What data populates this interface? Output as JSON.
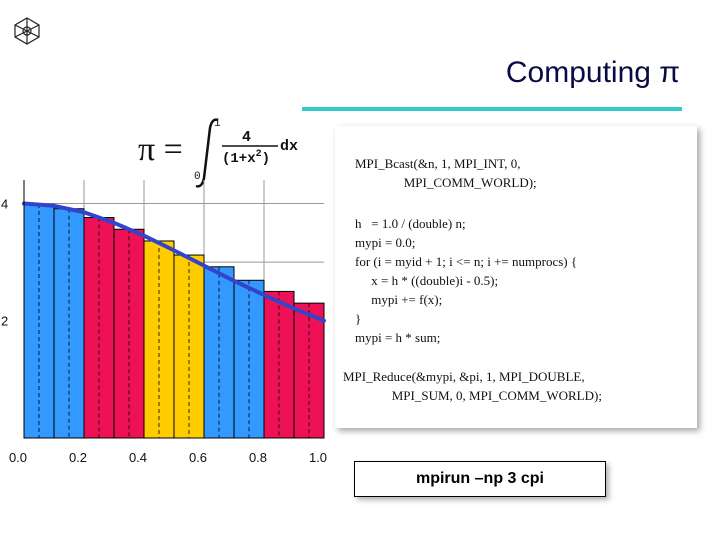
{
  "slide": {
    "title": "Computing π",
    "logo_icon": "net-cube-logo",
    "accent_color": "#33cccc"
  },
  "formula": {
    "lhs": "π =",
    "upper_limit": "1",
    "lower_limit": "0",
    "numerator": "4",
    "denominator": "(1+x",
    "exponent": "2",
    "denominator_close": ")",
    "differential": "dx"
  },
  "code": {
    "lines": [
      "MPI_Bcast(&n, 1, MPI_INT, 0,",
      "               MPI_COMM_WORLD);",
      "h   = 1.0 / (double) n;",
      "mypi = 0.0;",
      "for (i = myid + 1; i <= n; i += numprocs) {",
      "     x = h * ((double)i - 0.5);",
      "     mypi += f(x);",
      "}",
      "mypi = h * sum;",
      "MPI_Reduce(&mypi, &pi, 1, MPI_DOUBLE,",
      "               MPI_SUM, 0, MPI_COMM_WORLD);"
    ]
  },
  "command": {
    "text": "mpirun –np 3 cpi"
  },
  "chart_data": {
    "type": "bar",
    "x_ticks": [
      "0.0",
      "0.2",
      "0.4",
      "0.6",
      "0.8",
      "1.0"
    ],
    "y_ticks": [
      "2",
      "4"
    ],
    "xlim": [
      0,
      1
    ],
    "ylim": [
      0,
      4.4
    ],
    "bars": [
      {
        "x0": 0.0,
        "x1": 0.1,
        "value": 3.99,
        "color": "#3399ff"
      },
      {
        "x0": 0.1,
        "x1": 0.2,
        "value": 3.91,
        "color": "#3399ff"
      },
      {
        "x0": 0.2,
        "x1": 0.3,
        "value": 3.76,
        "color": "#ee1155"
      },
      {
        "x0": 0.3,
        "x1": 0.4,
        "value": 3.56,
        "color": "#ee1155"
      },
      {
        "x0": 0.4,
        "x1": 0.5,
        "value": 3.36,
        "color": "#ffcc00"
      },
      {
        "x0": 0.5,
        "x1": 0.6,
        "value": 3.12,
        "color": "#ffcc00"
      },
      {
        "x0": 0.6,
        "x1": 0.7,
        "value": 2.92,
        "color": "#3399ff"
      },
      {
        "x0": 0.7,
        "x1": 0.8,
        "value": 2.69,
        "color": "#3399ff"
      },
      {
        "x0": 0.8,
        "x1": 0.9,
        "value": 2.5,
        "color": "#ee1155"
      },
      {
        "x0": 0.9,
        "x1": 1.0,
        "value": 2.3,
        "color": "#ee1155"
      }
    ],
    "curve": {
      "function": "4/(1+x^2)",
      "color": "#3344cc",
      "x": [
        0.0,
        0.1,
        0.2,
        0.3,
        0.4,
        0.5,
        0.6,
        0.7,
        0.8,
        0.9,
        1.0
      ],
      "y": [
        4.0,
        3.96,
        3.85,
        3.67,
        3.45,
        3.2,
        2.94,
        2.68,
        2.44,
        2.21,
        2.0
      ]
    },
    "grid": true
  }
}
